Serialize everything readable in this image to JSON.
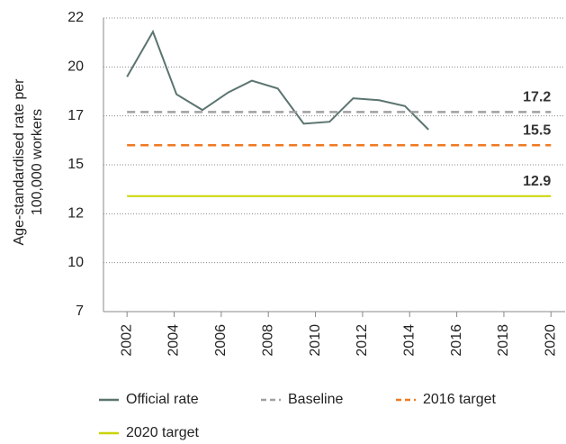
{
  "chart_data": {
    "type": "line",
    "ylabel": [
      "Age-standardised rate per",
      "100,000 workers"
    ],
    "xlim": [
      2001,
      2020.6
    ],
    "xticks": [
      2002,
      2004,
      2006,
      2008,
      2010,
      2012,
      2014,
      2016,
      2018,
      2020
    ],
    "ylim": [
      7,
      22
    ],
    "yticks": [
      7,
      {
        "value": 9.5,
        "label": "10"
      },
      12,
      {
        "value": 14.5,
        "label": "15"
      },
      17,
      {
        "value": 19.5,
        "label": "20"
      },
      22
    ],
    "grid": true,
    "legend": "bottom",
    "series": [
      {
        "name": "Official rate",
        "color": "#5b7470",
        "dash": false,
        "x": [
          2002,
          2003.1,
          2004.1,
          2005.2,
          2006.3,
          2007.3,
          2008.4,
          2009.5,
          2010.6,
          2011.6,
          2012.7,
          2013.8,
          2014.8
        ],
        "values": [
          19.0,
          21.3,
          18.1,
          17.3,
          18.2,
          18.8,
          18.4,
          16.6,
          16.7,
          17.9,
          17.8,
          17.5,
          16.3
        ]
      },
      {
        "name": "Baseline",
        "color": "#a0a0a0",
        "dash": true,
        "x": [
          2002,
          2020
        ],
        "values": [
          17.2,
          17.2
        ],
        "value_labels": [
          null,
          "17.2"
        ]
      },
      {
        "name": "2016 target",
        "color": "#f07a22",
        "dash": true,
        "x": [
          2002,
          2020
        ],
        "values": [
          15.5,
          15.5
        ],
        "value_labels": [
          null,
          "15.5"
        ]
      },
      {
        "name": "2020 target",
        "color": "#c9d400",
        "dash": false,
        "x": [
          2002,
          2020
        ],
        "values": [
          12.9,
          12.9
        ],
        "value_labels": [
          null,
          "12.9"
        ]
      }
    ]
  }
}
